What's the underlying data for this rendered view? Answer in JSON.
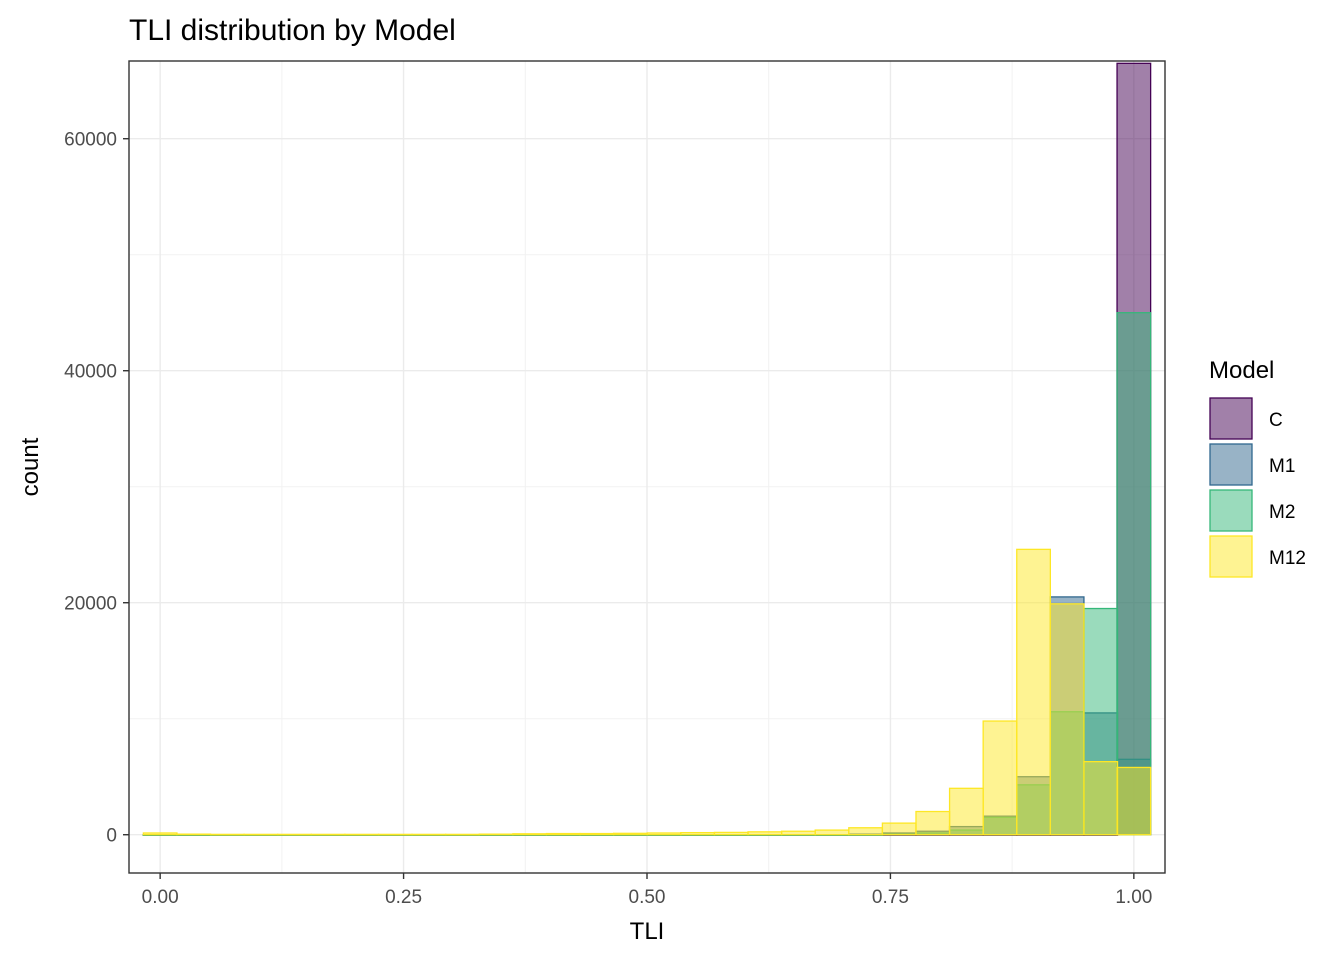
{
  "chart_data": {
    "type": "bar",
    "subtype": "overlaid histogram",
    "title": "TLI distribution by Model",
    "xlabel": "TLI",
    "ylabel": "count",
    "xlim": [
      -0.032,
      1.032
    ],
    "ylim": [
      -3300,
      66700
    ],
    "x_ticks": [
      {
        "value": 0,
        "label": "0.00"
      },
      {
        "value": 0.25,
        "label": "0.25"
      },
      {
        "value": 0.5,
        "label": "0.50"
      },
      {
        "value": 0.75,
        "label": "0.75"
      },
      {
        "value": 1,
        "label": "1.00"
      }
    ],
    "y_ticks": [
      {
        "value": 0,
        "label": "0"
      },
      {
        "value": 20000,
        "label": "20000"
      },
      {
        "value": 40000,
        "label": "40000"
      },
      {
        "value": 60000,
        "label": "60000"
      }
    ],
    "grid": true,
    "legend_position": "right",
    "legend_title": "Model",
    "bin_width": 0.0345,
    "bin_centers": [
      0.0,
      0.0345,
      0.069,
      0.1035,
      0.138,
      0.1725,
      0.207,
      0.2415,
      0.276,
      0.3105,
      0.345,
      0.3795,
      0.414,
      0.4485,
      0.483,
      0.5175,
      0.552,
      0.5865,
      0.621,
      0.6555,
      0.69,
      0.7245,
      0.759,
      0.7935,
      0.828,
      0.8625,
      0.897,
      0.9315,
      0.966,
      1.0
    ],
    "series": [
      {
        "name": "C",
        "fill": "#440154",
        "counts": [
          0,
          0,
          0,
          0,
          0,
          0,
          0,
          0,
          0,
          0,
          0,
          0,
          0,
          0,
          0,
          0,
          0,
          0,
          0,
          0,
          0,
          0,
          0,
          0,
          0,
          0,
          0,
          0,
          0,
          66500
        ]
      },
      {
        "name": "M1",
        "fill": "#31688e",
        "counts": [
          0,
          0,
          0,
          0,
          0,
          0,
          0,
          0,
          0,
          0,
          0,
          0,
          0,
          0,
          0,
          0,
          0,
          0,
          0,
          0,
          0,
          50,
          150,
          300,
          700,
          1600,
          5000,
          20500,
          10500,
          6500
        ]
      },
      {
        "name": "M2",
        "fill": "#35b779",
        "counts": [
          0,
          0,
          0,
          0,
          0,
          0,
          0,
          0,
          0,
          0,
          0,
          0,
          0,
          0,
          0,
          0,
          0,
          0,
          0,
          0,
          0,
          0,
          50,
          150,
          400,
          1500,
          4300,
          10600,
          19500,
          45000
        ]
      },
      {
        "name": "M12",
        "fill": "#fde725",
        "counts": [
          150,
          50,
          30,
          30,
          30,
          30,
          30,
          30,
          30,
          30,
          50,
          80,
          100,
          100,
          120,
          150,
          180,
          200,
          250,
          300,
          400,
          600,
          1000,
          2000,
          4000,
          9800,
          24600,
          19900,
          6300,
          5800
        ]
      }
    ]
  }
}
